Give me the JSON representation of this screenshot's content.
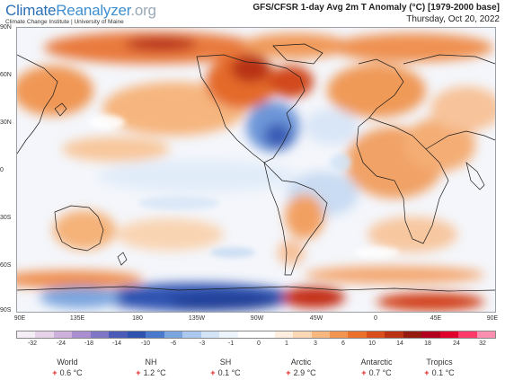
{
  "logo": {
    "part1": "Climate",
    "part2": "Reanalyzer",
    "part3": ".org",
    "subtitle": "Climate Change Institute | University of Maine"
  },
  "title": {
    "line1": "GFS/CFSR 1-day Avg 2m T Anomaly (°C) [1979-2000 base]",
    "line2": "Thursday, Oct 20, 2022"
  },
  "map": {
    "lat_labels": [
      "90N",
      "60N",
      "30N",
      "0",
      "30S",
      "60S",
      "90S"
    ],
    "lon_labels": [
      "90E",
      "135E",
      "180",
      "135W",
      "90W",
      "45W",
      "0",
      "45E",
      "90E"
    ]
  },
  "colorbar": {
    "ticks": [
      "-32",
      "-24",
      "-18",
      "-14",
      "-10",
      "-6",
      "-3",
      "-1",
      "0",
      "1",
      "3",
      "6",
      "10",
      "14",
      "18",
      "24",
      "32"
    ],
    "colors": [
      "#f5eef6",
      "#e6d3ea",
      "#cdb1dc",
      "#a98fd0",
      "#7f77c6",
      "#4b5cb8",
      "#2f52b1",
      "#4a78cc",
      "#7aa5de",
      "#abc9ee",
      "#d3e4f7",
      "#eef4fb",
      "#ffffff",
      "#ffffff",
      "#fdeee0",
      "#fbd7b5",
      "#f7b77f",
      "#f39551",
      "#ea702b",
      "#d84e1c",
      "#bb3114",
      "#951b10",
      "#b3001e",
      "#e0002c",
      "#ff3a6a",
      "#ff8fb0"
    ]
  },
  "stats": [
    {
      "name": "World",
      "sign": "+",
      "value": "0.6 °C"
    },
    {
      "name": "NH",
      "sign": "+",
      "value": "1.2 °C"
    },
    {
      "name": "SH",
      "sign": "+",
      "value": "0.1 °C"
    },
    {
      "name": "Arctic",
      "sign": "+",
      "value": "2.9 °C"
    },
    {
      "name": "Antarctic",
      "sign": "+",
      "value": "0.7 °C"
    },
    {
      "name": "Tropics",
      "sign": "+",
      "value": "0.1 °C"
    }
  ]
}
